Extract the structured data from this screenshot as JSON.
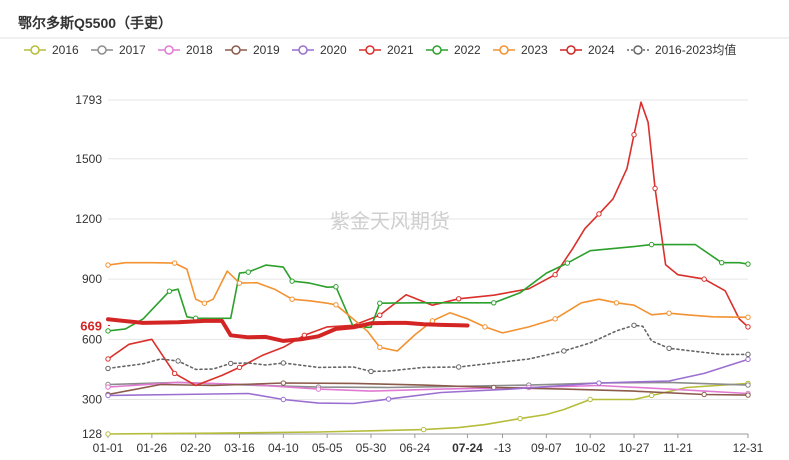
{
  "title": "鄂尔多斯Q5500（手吏）",
  "watermark": "紫金天风期货",
  "chart_data": {
    "type": "line",
    "ylim": [
      128,
      1793
    ],
    "y_ticks": [
      "128",
      "300",
      "600",
      "900",
      "1200",
      "1500",
      "1793"
    ],
    "x_ticks": [
      "01-01",
      "01-26",
      "02-20",
      "03-16",
      "04-10",
      "05-05",
      "05-30",
      "06-24",
      "07-24",
      "-13",
      "09-07",
      "10-02",
      "10-27",
      "11-21",
      "12-31"
    ],
    "x_tick_days": [
      0,
      25,
      50,
      75,
      100,
      125,
      150,
      175,
      205,
      225,
      250,
      275,
      300,
      325,
      365
    ],
    "highlight_x_tick": "07-24",
    "current_label": "669",
    "series": [
      {
        "name": "2016",
        "color": "#b5bd3a",
        "dashed": false,
        "x": [
          0,
          60,
          120,
          180,
          200,
          215,
          235,
          250,
          260,
          275,
          285,
          300,
          310,
          330,
          365
        ],
        "y": [
          128,
          132,
          138,
          150,
          160,
          175,
          205,
          225,
          250,
          300,
          300,
          300,
          320,
          360,
          380
        ]
      },
      {
        "name": "2017",
        "color": "#8c8c8c",
        "dashed": false,
        "x": [
          0,
          40,
          80,
          120,
          160,
          200,
          240,
          280,
          320,
          365
        ],
        "y": [
          375,
          385,
          372,
          362,
          360,
          366,
          372,
          382,
          385,
          372
        ]
      },
      {
        "name": "2018",
        "color": "#e07ad2",
        "dashed": false,
        "x": [
          0,
          40,
          80,
          120,
          150,
          190,
          240,
          280,
          320,
          365
        ],
        "y": [
          362,
          385,
          375,
          352,
          342,
          352,
          360,
          370,
          352,
          330
        ]
      },
      {
        "name": "2019",
        "color": "#8b5a4a",
        "dashed": false,
        "x": [
          0,
          30,
          60,
          100,
          140,
          180,
          220,
          260,
          300,
          340,
          365
        ],
        "y": [
          325,
          375,
          370,
          382,
          380,
          372,
          360,
          352,
          342,
          325,
          322
        ]
      },
      {
        "name": "2020",
        "color": "#9b6fd0",
        "dashed": false,
        "x": [
          0,
          40,
          80,
          100,
          120,
          140,
          160,
          190,
          230,
          280,
          320,
          340,
          365
        ],
        "y": [
          320,
          325,
          330,
          300,
          282,
          280,
          302,
          335,
          352,
          382,
          392,
          430,
          500
        ]
      },
      {
        "name": "2021",
        "color": "#d9302b",
        "dashed": false,
        "x": [
          0,
          12,
          25,
          38,
          50,
          65,
          75,
          88,
          100,
          112,
          125,
          140,
          155,
          170,
          185,
          200,
          220,
          240,
          255,
          265,
          272,
          280,
          288,
          296,
          300,
          304,
          308,
          312,
          318,
          325,
          340,
          352,
          360,
          365
        ],
        "y": [
          502,
          575,
          600,
          430,
          370,
          420,
          460,
          520,
          560,
          620,
          662,
          670,
          720,
          822,
          770,
          802,
          820,
          852,
          922,
          1052,
          1152,
          1225,
          1300,
          1452,
          1620,
          1782,
          1682,
          1352,
          972,
          922,
          900,
          842,
          702,
          662
        ]
      },
      {
        "name": "2022",
        "color": "#2ca02c",
        "dashed": false,
        "x": [
          0,
          10,
          20,
          35,
          40,
          45,
          50,
          70,
          75,
          80,
          90,
          100,
          105,
          115,
          125,
          130,
          140,
          150,
          155,
          175,
          200,
          220,
          235,
          250,
          262,
          275,
          300,
          310,
          320,
          335,
          350,
          360,
          365
        ],
        "y": [
          642,
          652,
          702,
          840,
          850,
          712,
          705,
          705,
          930,
          935,
          970,
          960,
          890,
          880,
          860,
          862,
          660,
          660,
          780,
          782,
          782,
          782,
          832,
          930,
          980,
          1042,
          1062,
          1072,
          1072,
          1072,
          982,
          982,
          975
        ]
      },
      {
        "name": "2023",
        "color": "#f39231",
        "dashed": false,
        "x": [
          0,
          10,
          25,
          38,
          45,
          50,
          55,
          60,
          68,
          75,
          85,
          95,
          105,
          115,
          125,
          130,
          140,
          148,
          155,
          165,
          175,
          185,
          195,
          205,
          215,
          225,
          240,
          255,
          270,
          280,
          290,
          300,
          310,
          320,
          330,
          345,
          365
        ],
        "y": [
          970,
          982,
          982,
          980,
          950,
          800,
          780,
          800,
          940,
          880,
          882,
          850,
          800,
          792,
          780,
          772,
          700,
          640,
          560,
          542,
          622,
          692,
          732,
          702,
          662,
          632,
          662,
          702,
          782,
          800,
          782,
          770,
          722,
          730,
          722,
          712,
          710
        ]
      },
      {
        "name": "2024",
        "color": "#d42525",
        "dashed": false,
        "thick": true,
        "x": [
          0,
          20,
          40,
          55,
          65,
          70,
          80,
          90,
          100,
          110,
          120,
          130,
          140,
          150,
          160,
          170,
          180,
          190,
          200,
          205
        ],
        "y": [
          700,
          682,
          685,
          692,
          692,
          620,
          610,
          612,
          592,
          600,
          615,
          652,
          660,
          680,
          682,
          682,
          675,
          672,
          670,
          669
        ]
      },
      {
        "name": "2016-2023均值",
        "color": "#666666",
        "dashed": true,
        "x": [
          0,
          20,
          30,
          40,
          50,
          60,
          70,
          80,
          90,
          100,
          120,
          140,
          150,
          160,
          180,
          200,
          220,
          240,
          260,
          275,
          290,
          300,
          305,
          310,
          320,
          335,
          350,
          365
        ],
        "y": [
          455,
          478,
          502,
          492,
          450,
          452,
          480,
          482,
          472,
          482,
          460,
          462,
          440,
          442,
          460,
          462,
          482,
          502,
          542,
          582,
          642,
          670,
          665,
          592,
          555,
          540,
          525,
          525
        ]
      }
    ]
  }
}
